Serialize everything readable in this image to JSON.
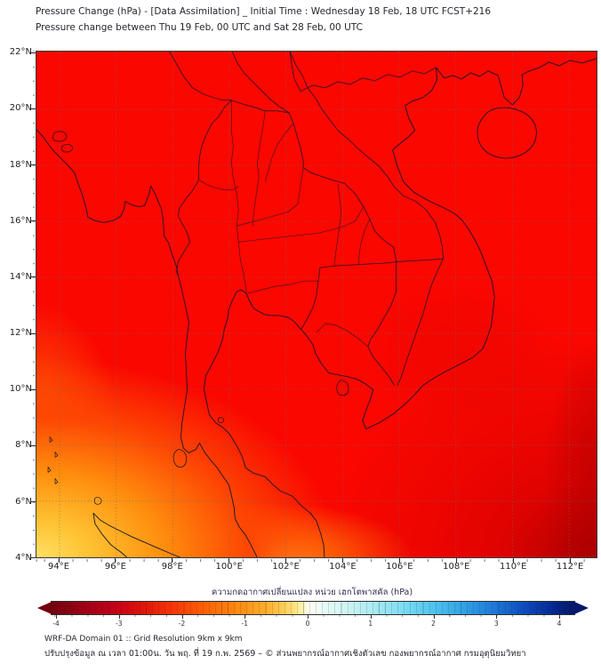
{
  "title": {
    "line1": "Pressure Change (hPa) - [Data Assimilation] _ Initial Time : Wednesday 18 Feb, 18 UTC FCST+216",
    "line2": "Pressure change between Thu 19 Feb, 00 UTC and Sat 28 Feb, 00 UTC"
  },
  "map": {
    "lat_ticks": [
      "22°N",
      "20°N",
      "18°N",
      "16°N",
      "14°N",
      "12°N",
      "10°N",
      "8°N",
      "6°N",
      "4°N"
    ],
    "lon_ticks": [
      "94°E",
      "96°E",
      "98°E",
      "100°E",
      "102°E",
      "104°E",
      "106°E",
      "108°E",
      "110°E",
      "112°E"
    ],
    "base_color": "#fa0700",
    "sw_yellow_core": "#ffe065",
    "sw_gold": "#ffc232",
    "sw_orange": "#ff8f0e",
    "sw_orange_red": "#fd4603",
    "bottom_orange_blob": "#ffad2a",
    "left_edge_orange": "#ff7d08",
    "se_dark_red": "#a30000",
    "se_mid_red": "#cd0000",
    "east_subtle_dark": "#d40000",
    "border_line_color": "#15152b",
    "gridline_color": "#6a6a6a"
  },
  "colorbar": {
    "title": "ความกดอากาศเปลี่ยนแปลง หน่วย เฮกโตพาสคัล (hPa)",
    "ticks": [
      "-4",
      "-3",
      "-2",
      "-1",
      "0",
      "1",
      "2",
      "3",
      "4"
    ],
    "left_arrow_color": "#73000f",
    "right_arrow_color": "#05176b",
    "extend": "both"
  },
  "footer": {
    "line1": "WRF-DA Domain 01 :: Grid Resolution 9km x 9km",
    "line2": "ปรับปรุงข้อมูล ณ เวลา 01:00น. วัน พฤ. ที่ 19 ก.พ. 2569 – © ส่วนพยากรณ์อากาศเชิงตัวเลข กองพยากรณ์อากาศ กรมอุตุนิยมวิทยา"
  },
  "chart_data": {
    "type": "heatmap",
    "title": "Pressure Change (hPa) - [Data Assimilation] _ Initial Time : Wednesday 18 Feb, 18 UTC FCST+216",
    "subtitle": "Pressure change between Thu 19 Feb, 00 UTC and Sat 28 Feb, 00 UTC",
    "x_ticks": [
      "94°E",
      "96°E",
      "98°E",
      "100°E",
      "102°E",
      "104°E",
      "106°E",
      "108°E",
      "110°E",
      "112°E"
    ],
    "y_ticks": [
      "22°N",
      "20°N",
      "18°N",
      "16°N",
      "14°N",
      "12°N",
      "10°N",
      "8°N",
      "6°N",
      "4°N"
    ],
    "x_range_deg_east": [
      93.2,
      113.0
    ],
    "y_range_deg_north": [
      4.0,
      22.0
    ],
    "grid": "dotted graticule every 2 degrees",
    "colorbar": {
      "label": "ความกดอากาศเปลี่ยนแปลง หน่วย เฮกโตพาสคัล (hPa)",
      "units": "hPa",
      "range": [
        -4,
        4
      ],
      "ticks": [
        -4,
        -3,
        -2,
        -1,
        0,
        1,
        2,
        3,
        4
      ],
      "extend": "both",
      "palette": "diverging dark-red → red → orange → yellow → white → cyan → blue → navy"
    },
    "field_description": "Nearly uniform strong negative pressure change (about -2.7 to -3.0 hPa, bright red) over the entire Thailand/Indochina domain; weaker negative change (about -0.8 to -1.5 hPa, orange to yellow) in the far southwest near northern Sumatra and the adjacent Andaman Sea; slightly stronger negative change (about -3.2 to -3.5 hPa, darker red) in the southeast corner of the domain.",
    "sample_points": [
      {
        "lon": 100.0,
        "lat": 16.0,
        "value_hpa": -2.8
      },
      {
        "lon": 105.0,
        "lat": 12.0,
        "value_hpa": -2.8
      },
      {
        "lon": 110.0,
        "lat": 20.0,
        "value_hpa": -2.8
      },
      {
        "lon": 94.0,
        "lat": 4.5,
        "value_hpa": -1.0
      },
      {
        "lon": 94.5,
        "lat": 6.5,
        "value_hpa": -1.4
      },
      {
        "lon": 96.5,
        "lat": 4.3,
        "value_hpa": -1.5
      },
      {
        "lon": 98.0,
        "lat": 8.0,
        "value_hpa": -2.4
      },
      {
        "lon": 112.5,
        "lat": 4.5,
        "value_hpa": -3.4
      },
      {
        "lon": 111.0,
        "lat": 7.0,
        "value_hpa": -3.1
      }
    ]
  }
}
